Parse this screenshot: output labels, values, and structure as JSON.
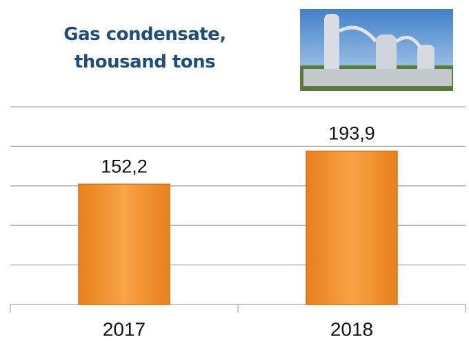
{
  "chart_data": {
    "type": "bar",
    "title": "Gas condensate, thousand tons",
    "categories": [
      "2017",
      "2018"
    ],
    "values": [
      152.2,
      193.9
    ],
    "value_labels": [
      "152,2",
      "193,9"
    ],
    "color": "#f39a3a",
    "ylim": [
      0,
      250
    ],
    "yticks": [
      0,
      50,
      100,
      150,
      200,
      250
    ],
    "grid": true
  }
}
